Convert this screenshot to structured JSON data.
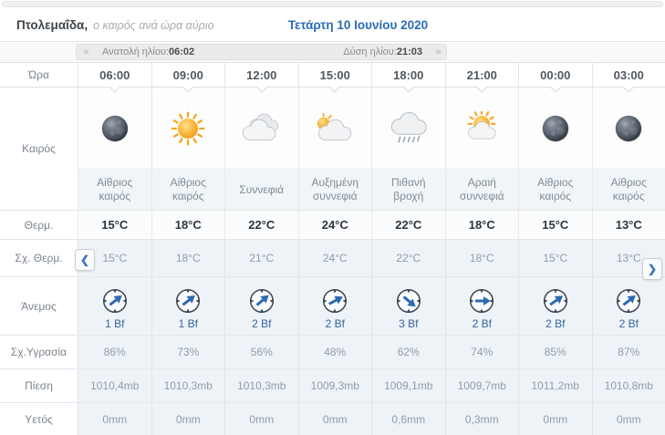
{
  "header": {
    "location": "Πτολεμαΐδα,",
    "subtitle": "ο καιρός ανά ώρα αύριο",
    "date": "Τετάρτη 10 Ιουνίου 2020"
  },
  "sunbar": {
    "prev": "‹‹‹",
    "sunrise_label": "Ανατολή ηλίου:",
    "sunrise_time": "06:02",
    "sunset_label": "Δύση ηλίου:",
    "sunset_time": "21:03",
    "next": "›››"
  },
  "labels": {
    "time": "Ώρα",
    "weather": "Καιρός",
    "temp": "Θερμ.",
    "feels": "Σχ. Θερμ.",
    "wind": "Άνεμος",
    "humidity": "Σχ.Υγρασία",
    "pressure": "Πίεση",
    "precip": "Υετός"
  },
  "nav": {
    "prev": "❮",
    "next": "❯"
  },
  "columns": [
    {
      "time": "06:00",
      "icon": "moon",
      "desc": "Αίθριος καιρός",
      "temp": "15°C",
      "feels": "15°C",
      "wind_dir": "NE",
      "wind_deg": -38,
      "wind_bf": "1 Bf",
      "humidity": "86%",
      "pressure": "1010,4mb",
      "precip": "0mm"
    },
    {
      "time": "09:00",
      "icon": "sun",
      "desc": "Αίθριος καιρός",
      "temp": "18°C",
      "feels": "18°C",
      "wind_dir": "NE",
      "wind_deg": -38,
      "wind_bf": "1 Bf",
      "humidity": "73%",
      "pressure": "1010,3mb",
      "precip": "0mm"
    },
    {
      "time": "12:00",
      "icon": "clouds",
      "desc": "Συννεφιά",
      "temp": "22°C",
      "feels": "21°C",
      "wind_dir": "NE",
      "wind_deg": -40,
      "wind_bf": "2 Bf",
      "humidity": "56%",
      "pressure": "1010,3mb",
      "precip": "0mm"
    },
    {
      "time": "15:00",
      "icon": "sun-clouds",
      "desc": "Αυξημένη συννεφιά",
      "temp": "24°C",
      "feels": "24°C",
      "wind_dir": "NE",
      "wind_deg": -28,
      "wind_bf": "2 Bf",
      "humidity": "48%",
      "pressure": "1009,3mb",
      "precip": "0mm"
    },
    {
      "time": "18:00",
      "icon": "rain-cloud",
      "desc": "Πιθανή βροχή",
      "temp": "22°C",
      "feels": "22°C",
      "wind_dir": "SE",
      "wind_deg": 40,
      "wind_bf": "3 Bf",
      "humidity": "62%",
      "pressure": "1009,1mb",
      "precip": "0,6mm"
    },
    {
      "time": "21:00",
      "icon": "sun-cloud",
      "desc": "Αραιή συννεφιά",
      "temp": "18°C",
      "feels": "18°C",
      "wind_dir": "E",
      "wind_deg": 0,
      "wind_bf": "2 Bf",
      "humidity": "74%",
      "pressure": "1009,7mb",
      "precip": "0,3mm"
    },
    {
      "time": "00:00",
      "icon": "moon",
      "desc": "Αίθριος καιρός",
      "temp": "15°C",
      "feels": "15°C",
      "wind_dir": "NE",
      "wind_deg": -35,
      "wind_bf": "2 Bf",
      "humidity": "85%",
      "pressure": "1011,2mb",
      "precip": "0mm"
    },
    {
      "time": "03:00",
      "icon": "moon",
      "desc": "Αίθριος καιρός",
      "temp": "13°C",
      "feels": "13°C",
      "wind_dir": "NE",
      "wind_deg": -38,
      "wind_bf": "2 Bf",
      "humidity": "87%",
      "pressure": "1010,8mb",
      "precip": "0mm"
    }
  ],
  "colors": {
    "accent_blue": "#2b6cb4",
    "wind_arrow_blue": "#2d6ab3",
    "row_blue_bg": "#eef3f8",
    "sun_orange": "#f6a623"
  }
}
